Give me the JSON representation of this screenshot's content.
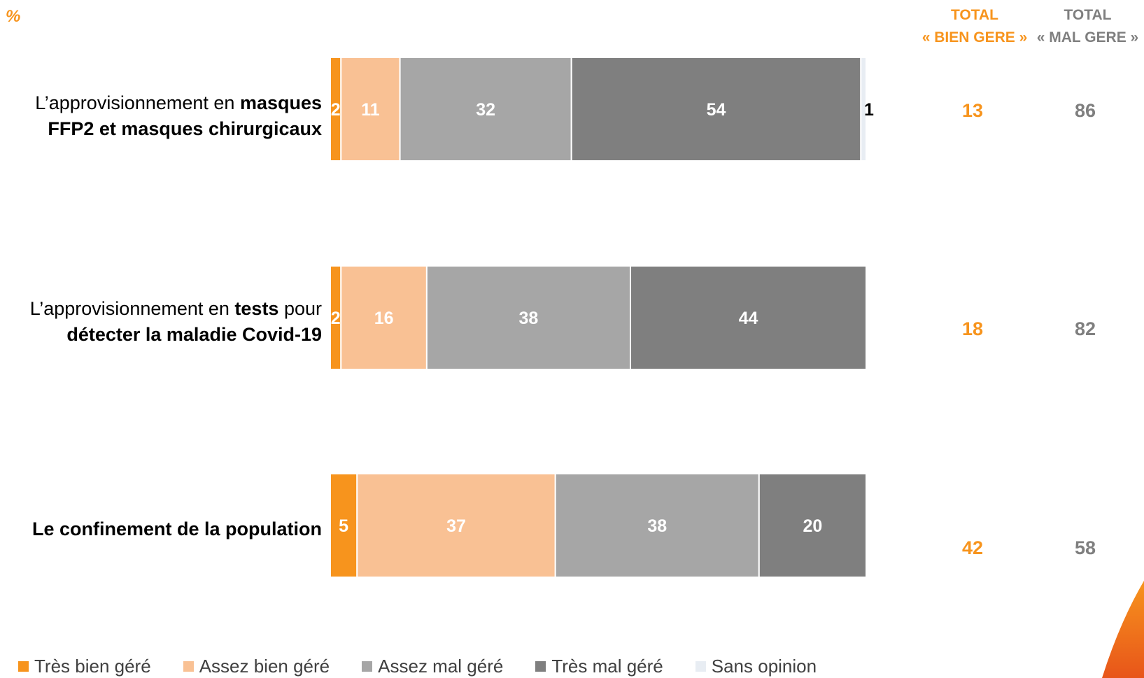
{
  "header": {
    "percent_sign": "%",
    "total_bien_line1": "TOTAL",
    "total_bien_line2": "« BIEN GERE »",
    "total_mal_line1": "TOTAL",
    "total_mal_line2": "« MAL GERE »"
  },
  "colors": {
    "tres_bien": "#f7941d",
    "assez_bien": "#f9c194",
    "assez_mal": "#a6a6a6",
    "tres_mal": "#7f7f7f",
    "sans_opinion": "#e8edf3",
    "accent": "#f7941d"
  },
  "chart_data": {
    "type": "bar",
    "orientation": "horizontal",
    "stacked": true,
    "unit": "%",
    "categories": [
      "L’approvisionnement en masques FFP2 et masques chirurgicaux",
      "L’approvisionnement en tests pour détecter la maladie Covid-19",
      "Le confinement de la population"
    ],
    "series": [
      {
        "name": "Très bien géré",
        "values": [
          2,
          2,
          5
        ]
      },
      {
        "name": "Assez bien géré",
        "values": [
          11,
          16,
          37
        ]
      },
      {
        "name": "Assez mal géré",
        "values": [
          32,
          38,
          38
        ]
      },
      {
        "name": "Très mal géré",
        "values": [
          54,
          44,
          20
        ]
      },
      {
        "name": "Sans opinion",
        "values": [
          1,
          0,
          0
        ]
      }
    ],
    "totals": {
      "bien_gere": [
        13,
        18,
        42
      ],
      "mal_gere": [
        86,
        82,
        58
      ]
    },
    "legend_position": "bottom",
    "grid": false
  },
  "rows": [
    {
      "label_parts": [
        "L’approvisionnement en ",
        "masques",
        "FFP2 et masques chirurgicaux"
      ]
    },
    {
      "label_parts": [
        "L’approvisionnement en ",
        "tests",
        " pour",
        "détecter la maladie Covid-19"
      ]
    },
    {
      "label_parts": [
        "Le confinement de la population"
      ]
    }
  ],
  "legend": [
    {
      "label": "Très bien géré"
    },
    {
      "label": "Assez bien géré"
    },
    {
      "label": "Assez mal géré"
    },
    {
      "label": "Très mal géré"
    },
    {
      "label": "Sans opinion"
    }
  ]
}
